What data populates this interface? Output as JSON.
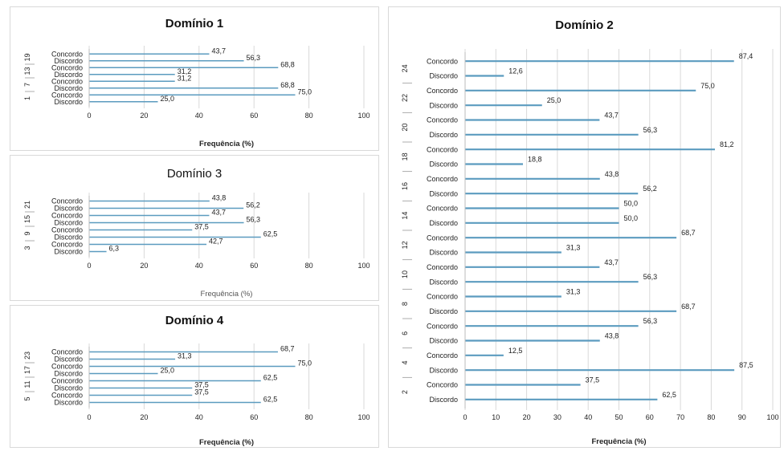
{
  "chart_data": [
    {
      "type": "bar",
      "orientation": "horizontal",
      "title": "Domínio 1",
      "xlabel": "Frequência (%)",
      "xlim": [
        0,
        100
      ],
      "xticks": [
        "0",
        "20",
        "40",
        "60",
        "80",
        "100"
      ],
      "groups": [
        "19",
        "13",
        "7",
        "1"
      ],
      "categories": [
        "Concordo",
        "Discordo",
        "Concordo",
        "Discordo",
        "Concordo",
        "Discordo",
        "Concordo",
        "Discordo"
      ],
      "values": [
        43.7,
        56.3,
        68.8,
        31.2,
        31.2,
        68.8,
        75.0,
        25.0
      ],
      "value_labels": [
        "43,7",
        "56,3",
        "68,8",
        "31,2",
        "31,2",
        "68,8",
        "75,0",
        "25,0"
      ]
    },
    {
      "type": "bar",
      "orientation": "horizontal",
      "title": "Domínio 2",
      "xlabel": "Frequência (%)",
      "xlim": [
        0,
        100
      ],
      "xticks": [
        "0",
        "10",
        "20",
        "30",
        "40",
        "50",
        "60",
        "70",
        "80",
        "90",
        "100"
      ],
      "groups": [
        "24",
        "22",
        "20",
        "18",
        "16",
        "14",
        "12",
        "10",
        "8",
        "6",
        "4",
        "2"
      ],
      "categories": [
        "Concordo",
        "Discordo",
        "Concordo",
        "Discordo",
        "Concordo",
        "Discordo",
        "Concordo",
        "Discordo",
        "Concordo",
        "Discordo",
        "Concordo",
        "Discordo",
        "Concordo",
        "Discordo",
        "Concordo",
        "Discordo",
        "Concordo",
        "Discordo",
        "Concordo",
        "Discordo",
        "Concordo",
        "Discordo",
        "Concordo",
        "Discordo"
      ],
      "values": [
        87.4,
        12.6,
        75.0,
        25.0,
        43.7,
        56.3,
        81.2,
        18.8,
        43.8,
        56.2,
        50.0,
        50.0,
        68.7,
        31.3,
        43.7,
        56.3,
        31.3,
        68.7,
        56.3,
        43.8,
        12.5,
        87.5,
        37.5,
        62.5
      ],
      "value_labels": [
        "87,4",
        "12,6",
        "75,0",
        "25,0",
        "43,7",
        "56,3",
        "81,2",
        "18,8",
        "43,8",
        "56,2",
        "50,0",
        "50,0",
        "68,7",
        "31,3",
        "43,7",
        "56,3",
        "31,3",
        "68,7",
        "56,3",
        "43,8",
        "12,5",
        "87,5",
        "37,5",
        "62,5"
      ]
    },
    {
      "type": "bar",
      "orientation": "horizontal",
      "title": "Domínio 3",
      "xlabel": "Frequência (%)",
      "xlim": [
        0,
        100
      ],
      "xticks": [
        "0",
        "20",
        "40",
        "60",
        "80",
        "100"
      ],
      "groups": [
        "21",
        "15",
        "9",
        "3"
      ],
      "categories": [
        "Concordo",
        "Discordo",
        "Concordo",
        "Discordo",
        "Concordo",
        "Discordo",
        "Concordo",
        "Discordo"
      ],
      "values": [
        43.8,
        56.2,
        43.7,
        56.3,
        37.5,
        62.5,
        42.7,
        6.3
      ],
      "value_labels": [
        "43,8",
        "56,2",
        "43,7",
        "56,3",
        "37,5",
        "62,5",
        "42,7",
        "6,3"
      ]
    },
    {
      "type": "bar",
      "orientation": "horizontal",
      "title": "Domínio 4",
      "xlabel": "Frequência (%)",
      "xlim": [
        0,
        100
      ],
      "xticks": [
        "0",
        "20",
        "40",
        "60",
        "80",
        "100"
      ],
      "groups": [
        "23",
        "17",
        "11",
        "5"
      ],
      "categories": [
        "Concordo",
        "Discordo",
        "Concordo",
        "Discordo",
        "Concordo",
        "Discordo",
        "Concordo",
        "Discordo"
      ],
      "values": [
        68.7,
        31.3,
        75.0,
        25.0,
        62.5,
        37.5,
        37.5,
        62.5
      ],
      "value_labels": [
        "68,7",
        "31,3",
        "75,0",
        "25,0",
        "62,5",
        "37,5",
        "37,5",
        "62,5"
      ]
    }
  ],
  "colors": {
    "bar": "#5b9bbf",
    "bar_edge": "#2f6f96",
    "grid": "#d9d9d9",
    "text": "#222222"
  }
}
